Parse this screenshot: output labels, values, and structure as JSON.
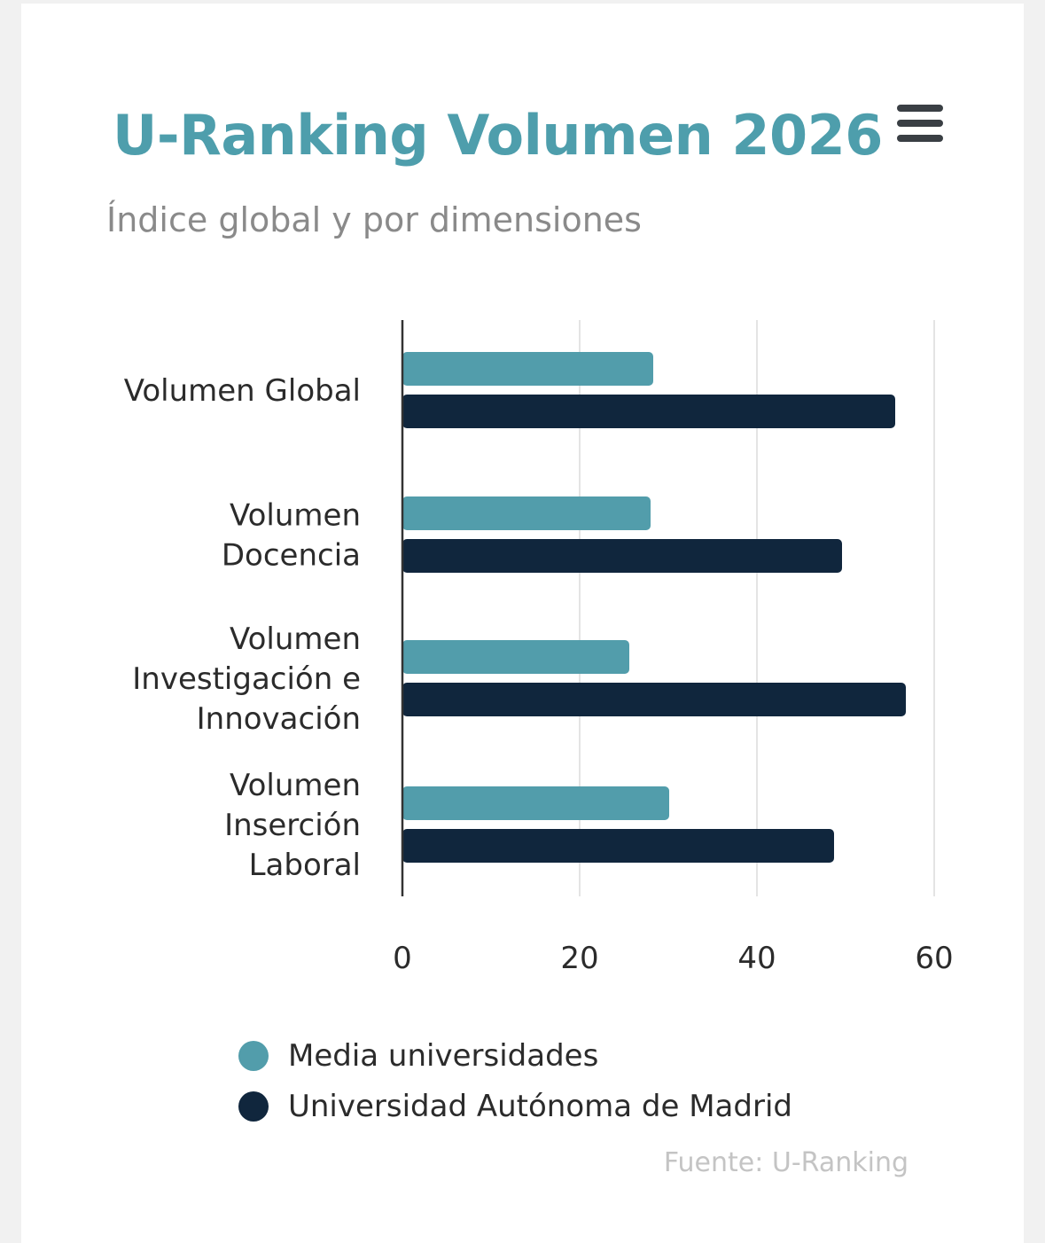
{
  "colors": {
    "accent": "#4e9eac",
    "series_media": "#529dab",
    "series_uam": "#10263d",
    "grid": "#e4e4e4",
    "axis": "#333333"
  },
  "menu_icon": "hamburger-menu-icon",
  "chart_data": {
    "type": "bar",
    "orientation": "horizontal",
    "title": "U-Ranking Volumen 2026",
    "subtitle": "Índice global y por dimensiones",
    "categories": [
      [
        "Volumen Global"
      ],
      [
        "Volumen",
        "Docencia"
      ],
      [
        "Volumen",
        "Investigación e",
        "Innovación"
      ],
      [
        "Volumen",
        "Inserción",
        "Laboral"
      ]
    ],
    "series": [
      {
        "name": "Media universidades",
        "values": [
          28.3,
          28.0,
          25.6,
          30.1
        ]
      },
      {
        "name": "Universidad Autónoma de Madrid",
        "values": [
          55.6,
          49.6,
          56.8,
          48.7
        ]
      }
    ],
    "xlim": [
      0,
      60
    ],
    "xticks": [
      "0",
      "20",
      "40",
      "60"
    ],
    "grid": true,
    "legend": "bottom-center",
    "source": "Fuente: U-Ranking"
  }
}
